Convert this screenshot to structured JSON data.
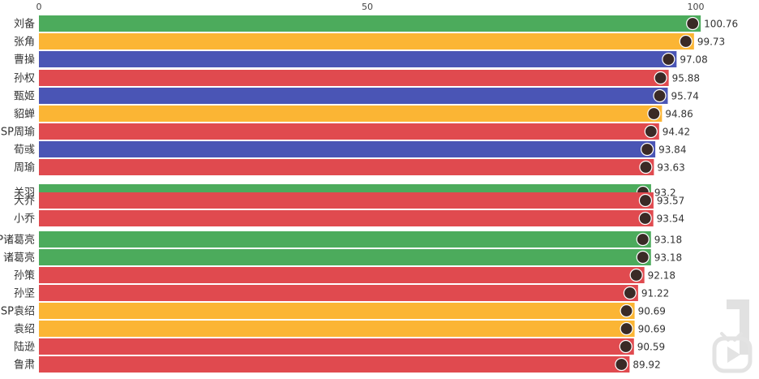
{
  "chart_data": {
    "type": "bar",
    "orientation": "horizontal",
    "xlim": [
      0,
      100
    ],
    "x_ticks": [
      "0",
      "50",
      "100"
    ],
    "grid": false,
    "bars": [
      {
        "name": "刘备",
        "value": 100.76,
        "value_label": "100.76",
        "color": "#4cab5c"
      },
      {
        "name": "张角",
        "value": 99.73,
        "value_label": "99.73",
        "color": "#fbb534"
      },
      {
        "name": "曹操",
        "value": 97.08,
        "value_label": "97.08",
        "color": "#4a55b5"
      },
      {
        "name": "孙权",
        "value": 95.88,
        "value_label": "95.88",
        "color": "#e04a4f"
      },
      {
        "name": "甄姬",
        "value": 95.74,
        "value_label": "95.74",
        "color": "#4a55b5"
      },
      {
        "name": "貂蝉",
        "value": 94.86,
        "value_label": "94.86",
        "color": "#fbb534"
      },
      {
        "name": "SP周瑜",
        "value": 94.42,
        "value_label": "94.42",
        "color": "#e04a4f"
      },
      {
        "name": "荀彧",
        "value": 93.84,
        "value_label": "93.84",
        "color": "#4a55b5"
      },
      {
        "name": "周瑜",
        "value": 93.63,
        "value_label": "93.63",
        "color": "#e04a4f"
      },
      {
        "name": "关羽",
        "value": 93.2,
        "value_label": "93.2",
        "color": "#4cab5c"
      },
      {
        "name": "大乔",
        "value": 93.57,
        "value_label": "93.57",
        "color": "#e04a4f"
      },
      {
        "name": "小乔",
        "value": 93.54,
        "value_label": "93.54",
        "color": "#e04a4f"
      },
      {
        "name": "SP诸葛亮",
        "value": 93.18,
        "value_label": "93.18",
        "color": "#4cab5c"
      },
      {
        "name": "诸葛亮",
        "value": 93.18,
        "value_label": "93.18",
        "color": "#4cab5c"
      },
      {
        "name": "孙策",
        "value": 92.18,
        "value_label": "92.18",
        "color": "#e04a4f"
      },
      {
        "name": "孙坚",
        "value": 91.22,
        "value_label": "91.22",
        "color": "#e04a4f"
      },
      {
        "name": "SP袁绍",
        "value": 90.69,
        "value_label": "90.69",
        "color": "#fbb534"
      },
      {
        "name": "袁绍",
        "value": 90.69,
        "value_label": "90.69",
        "color": "#fbb534"
      },
      {
        "name": "陆逊",
        "value": 90.59,
        "value_label": "90.59",
        "color": "#e04a4f"
      },
      {
        "name": "鲁肃",
        "value": 89.92,
        "value_label": "89.92",
        "color": "#e04a4f"
      }
    ]
  },
  "icons": {
    "bar_end": "character-avatar-icon",
    "watermark": "tv-play-logo-icon"
  }
}
